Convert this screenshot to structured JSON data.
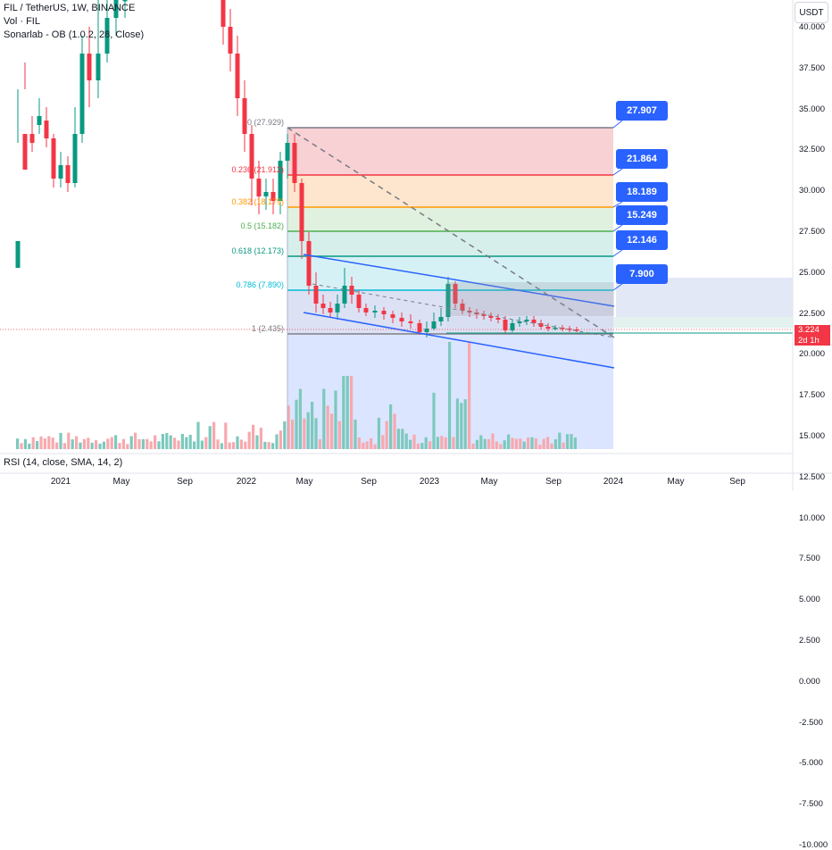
{
  "legend": {
    "symbol": "FIL / TetherUS, 1W, BINANCE",
    "volume": "Vol · FIL",
    "indicator": "Sonarlab - OB (1.0.2, 28, Close)"
  },
  "currency_button": "USDT",
  "rsi_label": "RSI (14, close, SMA, 14, 2)",
  "y_axis": [
    "40.000",
    "37.500",
    "35.000",
    "32.500",
    "30.000",
    "27.500",
    "25.000",
    "22.500",
    "20.000",
    "17.500",
    "15.000",
    "12.500",
    "10.000",
    "7.500",
    "5.000",
    "2.500",
    "0.000",
    "-2.500",
    "-5.000",
    "-7.500",
    "-10.000"
  ],
  "x_axis": [
    "2021",
    "May",
    "Sep",
    "2022",
    "May",
    "Sep",
    "2023",
    "May",
    "Sep",
    "2024",
    "May",
    "Sep"
  ],
  "fib_levels": [
    {
      "label": "0 (27.929)",
      "color": "#787b86",
      "fill": "#f7c9cd",
      "callout": "27.907"
    },
    {
      "label": "0.236 (21.912)",
      "color": "#f23645",
      "fill": "#fde2c4",
      "callout": "21.864"
    },
    {
      "label": "0.382 (18.179)",
      "color": "#ff9800",
      "fill": "#dcefd9",
      "callout": "18.189"
    },
    {
      "label": "0.5 (15.182)",
      "color": "#4caf50",
      "fill": "#d0ece6",
      "callout": "15.249"
    },
    {
      "label": "0.618 (12.173)",
      "color": "#089981",
      "fill": "#cfeef4",
      "callout": "12.146"
    },
    {
      "label": "0.786 (7.890)",
      "color": "#00bcd4",
      "fill": "#d6dcf2",
      "callout": "7.900"
    },
    {
      "label": "1 (2.435)",
      "color": "#787b86",
      "fill": "",
      "callout": ""
    }
  ],
  "price_tag": {
    "price": "3.224",
    "countdown": "2d 1h"
  },
  "colors": {
    "up": "#089981",
    "down": "#f23645",
    "accent": "#2962ff",
    "vol_up": "#7cc9bd",
    "vol_down": "#f7a9ae"
  }
}
